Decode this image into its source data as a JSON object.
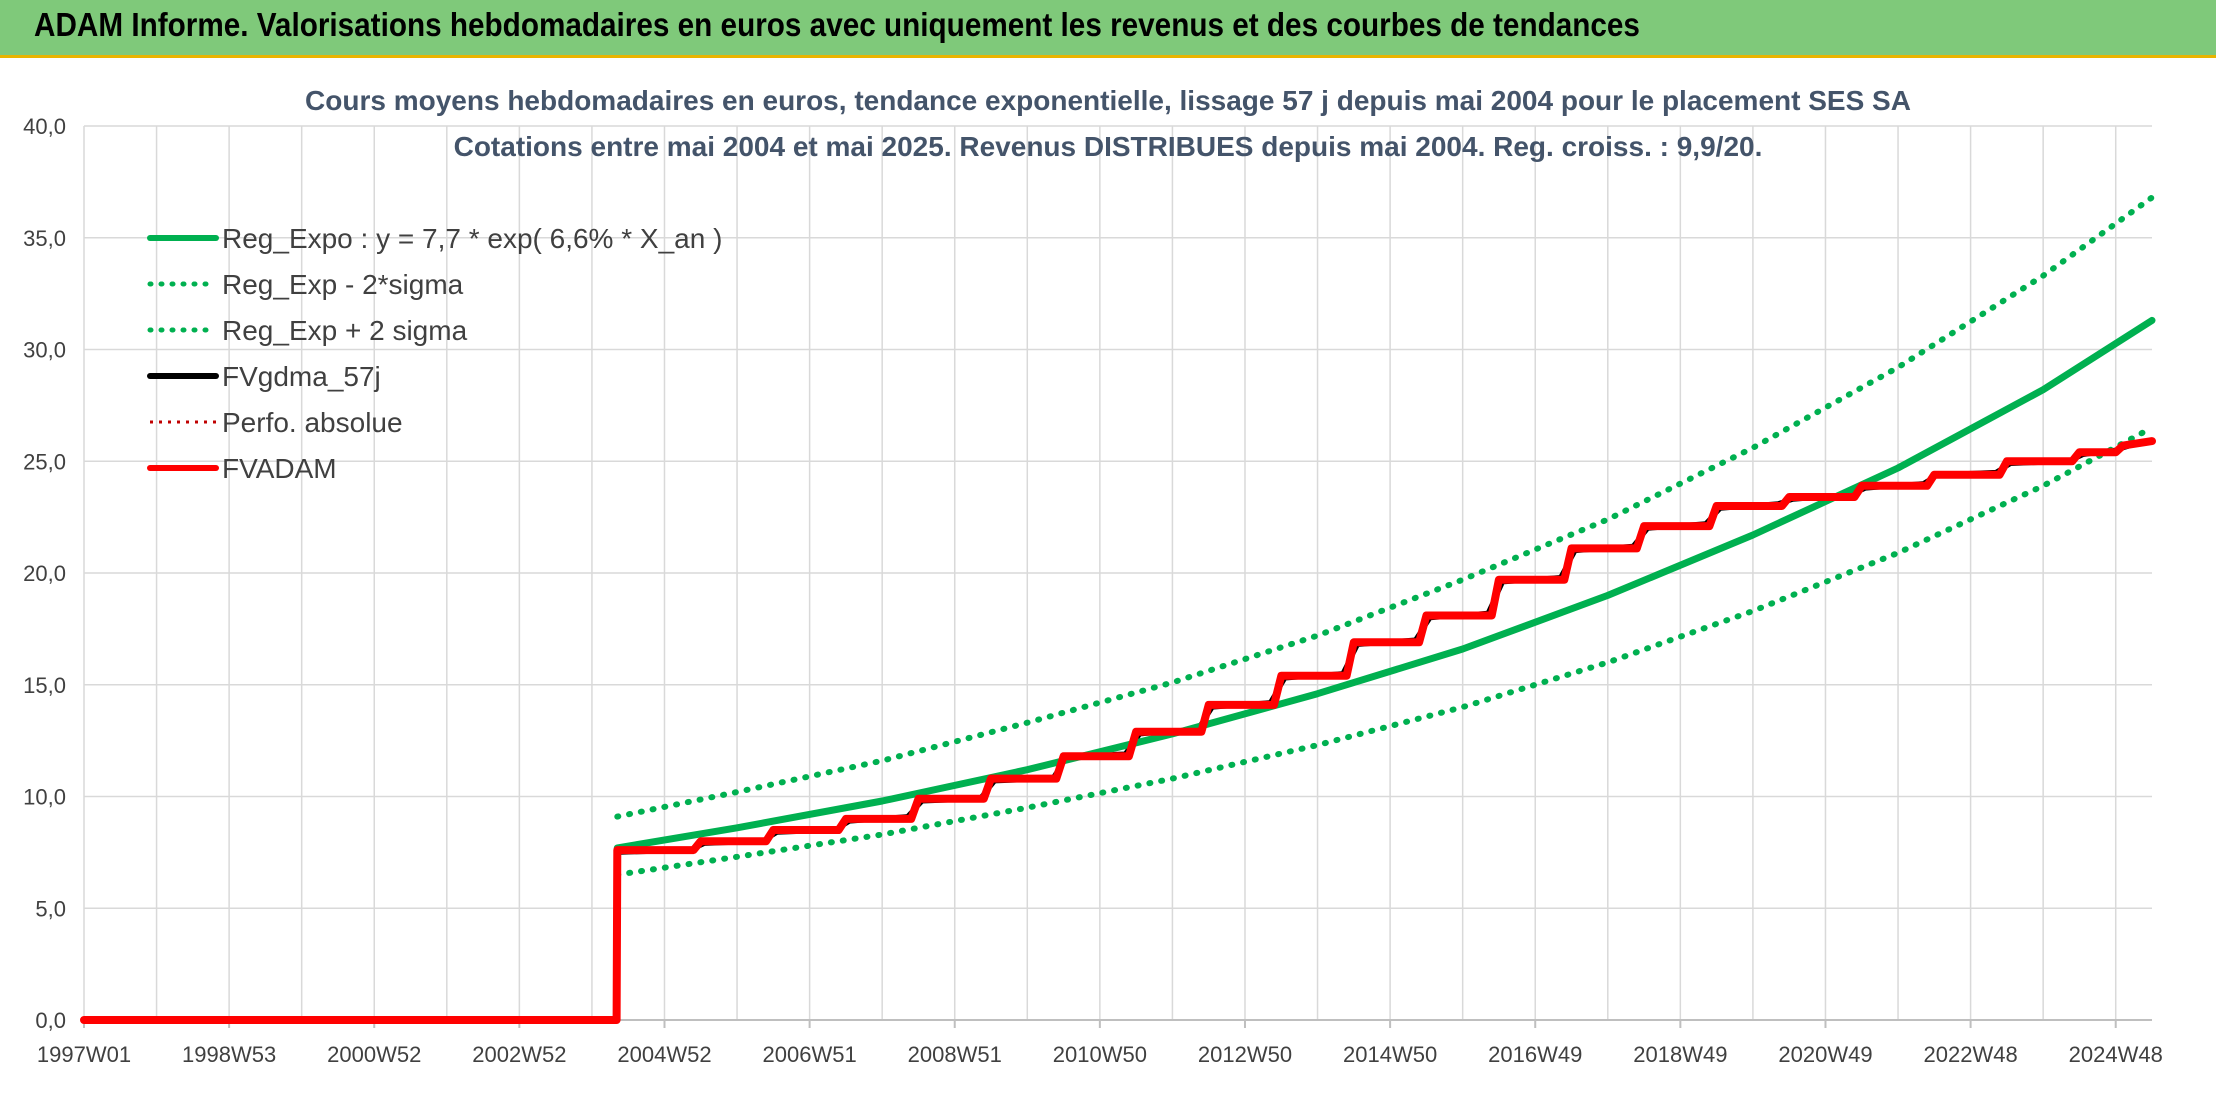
{
  "header": {
    "title": "ADAM Informe. Valorisations hebdomadaires en euros avec uniquement les revenus et des courbes de tendances"
  },
  "chart_data": {
    "type": "line",
    "title_lines": [
      "Cours moyens hebdomadaires en euros, tendance exponentielle, lissage 57 j depuis mai 2004 pour le placement SES SA",
      "Cotations entre mai 2004 et mai 2025. Revenus DISTRIBUES depuis mai 2004. Reg. croiss. : 9,9/20."
    ],
    "xlabel": "",
    "ylabel": "",
    "x_tick_labels": [
      "1997W01",
      "1998W53",
      "2000W52",
      "2002W52",
      "2004W52",
      "2006W51",
      "2008W51",
      "2010W50",
      "2012W50",
      "2014W50",
      "2016W49",
      "2018W49",
      "2020W49",
      "2022W48",
      "2024W48"
    ],
    "x_tick_years": [
      1997.0,
      1999.0,
      2001.0,
      2003.0,
      2005.0,
      2007.0,
      2009.0,
      2011.0,
      2013.0,
      2015.0,
      2017.0,
      2019.0,
      2021.0,
      2023.0,
      2025.0
    ],
    "xlim": [
      1997.0,
      2025.5
    ],
    "ylim": [
      0,
      40
    ],
    "y_ticks": [
      "0,0",
      "5,0",
      "10,0",
      "15,0",
      "20,0",
      "25,0",
      "30,0",
      "35,0",
      "40,0"
    ],
    "y_tick_values": [
      0,
      5,
      10,
      15,
      20,
      25,
      30,
      35,
      40
    ],
    "grid": true,
    "legend_position": "top-left",
    "series": [
      {
        "name": "Reg_Expo : y = 7,7 * exp( 6,6% *  X_an )",
        "color": "#00b050",
        "style": "solid",
        "x": [
          2004.35,
          2006.0,
          2008.0,
          2010.0,
          2012.0,
          2014.0,
          2016.0,
          2018.0,
          2020.0,
          2022.0,
          2024.0,
          2025.5
        ],
        "y": [
          7.7,
          8.6,
          9.8,
          11.2,
          12.8,
          14.6,
          16.6,
          19.0,
          21.7,
          24.7,
          28.2,
          31.3
        ]
      },
      {
        "name": "Reg_Exp - 2*sigma",
        "color": "#00b050",
        "style": "dotted",
        "x": [
          2004.35,
          2006.0,
          2008.0,
          2010.0,
          2012.0,
          2014.0,
          2016.0,
          2018.0,
          2020.0,
          2022.0,
          2024.0,
          2025.5
        ],
        "y": [
          6.5,
          7.3,
          8.3,
          9.5,
          10.8,
          12.3,
          14.0,
          16.0,
          18.3,
          20.9,
          23.9,
          26.5
        ]
      },
      {
        "name": "Reg_Exp + 2 sigma",
        "color": "#00b050",
        "style": "dotted",
        "x": [
          2004.35,
          2006.0,
          2008.0,
          2010.0,
          2012.0,
          2014.0,
          2016.0,
          2018.0,
          2020.0,
          2022.0,
          2024.0,
          2025.5
        ],
        "y": [
          9.1,
          10.2,
          11.6,
          13.3,
          15.1,
          17.2,
          19.7,
          22.4,
          25.6,
          29.2,
          33.3,
          36.8
        ]
      },
      {
        "name": "FVgdma_57j",
        "color": "#000000",
        "style": "solid",
        "x": [
          1997.0,
          2004.34,
          2004.35,
          2005.35,
          2005.55,
          2006.35,
          2006.55,
          2007.35,
          2007.55,
          2008.35,
          2008.55,
          2009.35,
          2009.55,
          2010.35,
          2010.55,
          2011.35,
          2011.55,
          2012.35,
          2012.55,
          2013.35,
          2013.55,
          2014.35,
          2014.55,
          2015.35,
          2015.55,
          2016.35,
          2016.55,
          2017.35,
          2017.55,
          2018.35,
          2018.55,
          2019.35,
          2019.55,
          2020.35,
          2020.55,
          2021.35,
          2021.55,
          2022.35,
          2022.55,
          2023.35,
          2023.55,
          2024.35,
          2024.55,
          2025.0,
          2025.2,
          2025.5
        ],
        "y": [
          0.0,
          0.0,
          7.5,
          7.6,
          7.9,
          8.0,
          8.4,
          8.5,
          8.9,
          9.1,
          9.8,
          9.9,
          10.7,
          10.8,
          11.8,
          11.9,
          12.8,
          13.0,
          14.0,
          14.2,
          15.3,
          15.5,
          16.8,
          17.0,
          18.0,
          18.2,
          19.6,
          19.8,
          21.0,
          21.2,
          22.0,
          22.2,
          22.9,
          23.1,
          23.3,
          23.5,
          23.8,
          24.0,
          24.4,
          24.5,
          24.9,
          25.0,
          25.3,
          25.5,
          25.7,
          25.9
        ]
      },
      {
        "name": "Perfo. absolue",
        "color": "#c00000",
        "style": "dotted",
        "x": [
          1997.0,
          2004.34,
          2004.35,
          2005.4,
          2005.5,
          2006.4,
          2006.5,
          2007.4,
          2007.5,
          2008.4,
          2008.5,
          2009.4,
          2009.5,
          2010.4,
          2010.5,
          2011.4,
          2011.5,
          2012.4,
          2012.5,
          2013.4,
          2013.5,
          2014.4,
          2014.5,
          2015.4,
          2015.5,
          2016.4,
          2016.5,
          2017.4,
          2017.5,
          2018.4,
          2018.5,
          2019.4,
          2019.5,
          2020.4,
          2020.5,
          2021.4,
          2021.5,
          2022.4,
          2022.5,
          2023.4,
          2023.5,
          2024.4,
          2024.5,
          2025.0,
          2025.1,
          2025.5
        ],
        "y": [
          0.0,
          0.0,
          7.6,
          7.6,
          8.0,
          8.0,
          8.5,
          8.5,
          9.0,
          9.0,
          9.9,
          9.9,
          10.8,
          10.8,
          11.8,
          11.8,
          12.9,
          12.9,
          14.1,
          14.1,
          15.4,
          15.4,
          16.9,
          16.9,
          18.1,
          18.1,
          19.7,
          19.7,
          21.1,
          21.1,
          22.1,
          22.1,
          23.0,
          23.0,
          23.4,
          23.4,
          23.9,
          23.9,
          24.4,
          24.4,
          25.0,
          25.0,
          25.4,
          25.4,
          25.7,
          25.9
        ]
      },
      {
        "name": "FVADAM",
        "color": "#ff0000",
        "style": "solid",
        "x": [
          1997.0,
          2004.34,
          2004.35,
          2005.4,
          2005.5,
          2006.4,
          2006.5,
          2007.4,
          2007.5,
          2008.4,
          2008.5,
          2009.4,
          2009.5,
          2010.4,
          2010.5,
          2011.4,
          2011.5,
          2012.4,
          2012.5,
          2013.4,
          2013.5,
          2014.4,
          2014.5,
          2015.4,
          2015.5,
          2016.4,
          2016.5,
          2017.4,
          2017.5,
          2018.4,
          2018.5,
          2019.4,
          2019.5,
          2020.4,
          2020.5,
          2021.4,
          2021.5,
          2022.4,
          2022.5,
          2023.4,
          2023.5,
          2024.4,
          2024.5,
          2025.0,
          2025.1,
          2025.5
        ],
        "y": [
          0.0,
          0.0,
          7.6,
          7.6,
          8.0,
          8.0,
          8.5,
          8.5,
          9.0,
          9.0,
          9.9,
          9.9,
          10.8,
          10.8,
          11.8,
          11.8,
          12.9,
          12.9,
          14.1,
          14.1,
          15.4,
          15.4,
          16.9,
          16.9,
          18.1,
          18.1,
          19.7,
          19.7,
          21.1,
          21.1,
          22.1,
          22.1,
          23.0,
          23.0,
          23.4,
          23.4,
          23.9,
          23.9,
          24.4,
          24.4,
          25.0,
          25.0,
          25.4,
          25.4,
          25.7,
          25.9
        ]
      }
    ],
    "legend": [
      {
        "label": "Reg_Expo : y = 7,7 * exp( 6,6% *  X_an )",
        "color": "#00b050",
        "style": "solid"
      },
      {
        "label": "Reg_Exp - 2*sigma",
        "color": "#00b050",
        "style": "dotted"
      },
      {
        "label": "Reg_Exp + 2 sigma",
        "color": "#00b050",
        "style": "dotted"
      },
      {
        "label": "FVgdma_57j",
        "color": "#000000",
        "style": "solid"
      },
      {
        "label": "Perfo. absolue",
        "color": "#c00000",
        "style": "dotted"
      },
      {
        "label": "FVADAM",
        "color": "#ff0000",
        "style": "solid"
      }
    ]
  }
}
